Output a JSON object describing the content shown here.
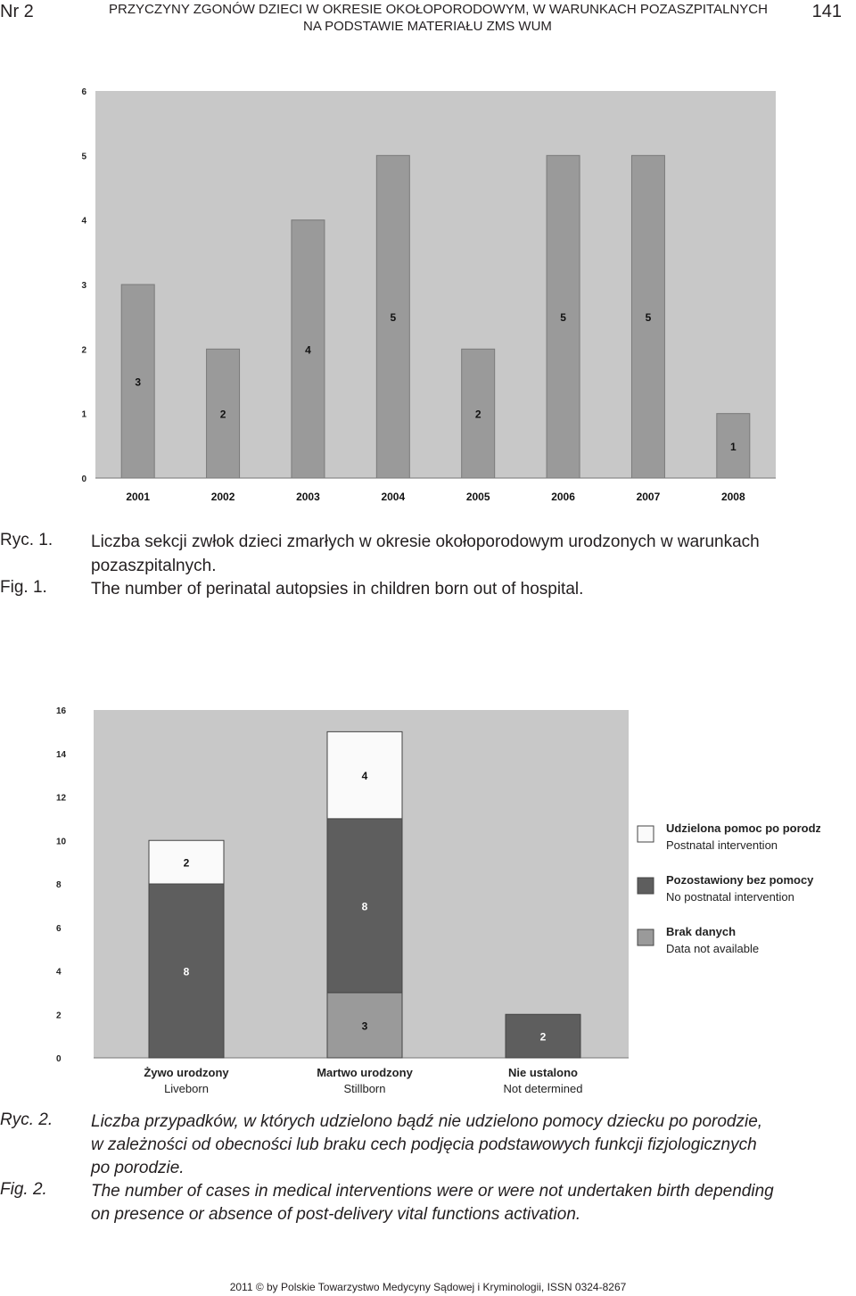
{
  "header": {
    "issue": "Nr 2",
    "title_line1": "PRZYCZYNY ZGONÓW DZIECI W OKRESIE OKOŁOPORODOWYM, W WARUNKACH POZASZPITALNYCH",
    "title_line2": "NA PODSTAWIE MATERIAŁU ZMS WUM",
    "page_number": "141"
  },
  "figure1": {
    "ryc_label": "Ryc. 1.",
    "ryc_text_line1": "Liczba sekcji zwłok dzieci zmarłych w okresie okołoporodowym urodzonych w warunkach",
    "ryc_text_line2": "pozaszpitalnych.",
    "fig_label": "Fig. 1.",
    "fig_text": "The number of perinatal autopsies in children born out of hospital."
  },
  "figure2": {
    "ryc_label": "Ryc. 2.",
    "ryc_text_line1": "Liczba przypadków, w których udzielono bądź nie udzielono pomocy dziecku po porodzie,",
    "ryc_text_line2": "w zależności od obecności lub braku  cech podjęcia podstawowych funkcji fizjologicznych",
    "ryc_text_line3": "po porodzie.",
    "fig_label": "Fig. 2.",
    "fig_text_line1": "The number of cases in medical interventions were or were not undertaken birth depending",
    "fig_text_line2": "on presence or absence of post-delivery vital functions activation."
  },
  "footer": {
    "text": "2011 © by Polskie Towarzystwo Medycyny Sądowej i Kryminologii, ISSN 0324-8267"
  },
  "chart_data": [
    {
      "type": "bar",
      "categories": [
        "2001",
        "2002",
        "2003",
        "2004",
        "2005",
        "2006",
        "2007",
        "2008"
      ],
      "values": [
        3,
        2,
        4,
        5,
        2,
        5,
        5,
        1
      ],
      "data_labels": [
        "3",
        "2",
        "4",
        "5",
        "2",
        "5",
        "5",
        "1"
      ],
      "yticks": [
        "0",
        "1",
        "2",
        "3",
        "4",
        "5",
        "6"
      ],
      "ylim": [
        0,
        6
      ],
      "grid": false,
      "colors": {
        "plot_bg": "#c8c8c8",
        "bar": "#9a9a9a"
      }
    },
    {
      "type": "bar",
      "stacked": true,
      "categories": [
        {
          "pl": "Żywo urodzony",
          "en": "Liveborn"
        },
        {
          "pl": "Martwo urodzony",
          "en": "Stillborn"
        },
        {
          "pl": "Nie ustalono",
          "en": "Not determined"
        }
      ],
      "series": [
        {
          "pl": "Brak danych",
          "en": "Data not available",
          "values": [
            0,
            3,
            0
          ],
          "color": "#9a9a9a"
        },
        {
          "pl": "Pozostawiony bez pomocy",
          "en": "No postnatal intervention",
          "values": [
            8,
            8,
            2
          ],
          "color": "#5e5e5e"
        },
        {
          "pl": "Udzielona pomoc po porodzie",
          "en": "Postnatal intervention",
          "values": [
            2,
            4,
            0
          ],
          "color": "#fafafa"
        }
      ],
      "yticks": [
        "0",
        "2",
        "4",
        "6",
        "8",
        "10",
        "12",
        "14",
        "16"
      ],
      "ylim": [
        0,
        16
      ],
      "legend_position": "right",
      "grid": false,
      "colors": {
        "plot_bg": "#c8c8c8"
      }
    }
  ]
}
